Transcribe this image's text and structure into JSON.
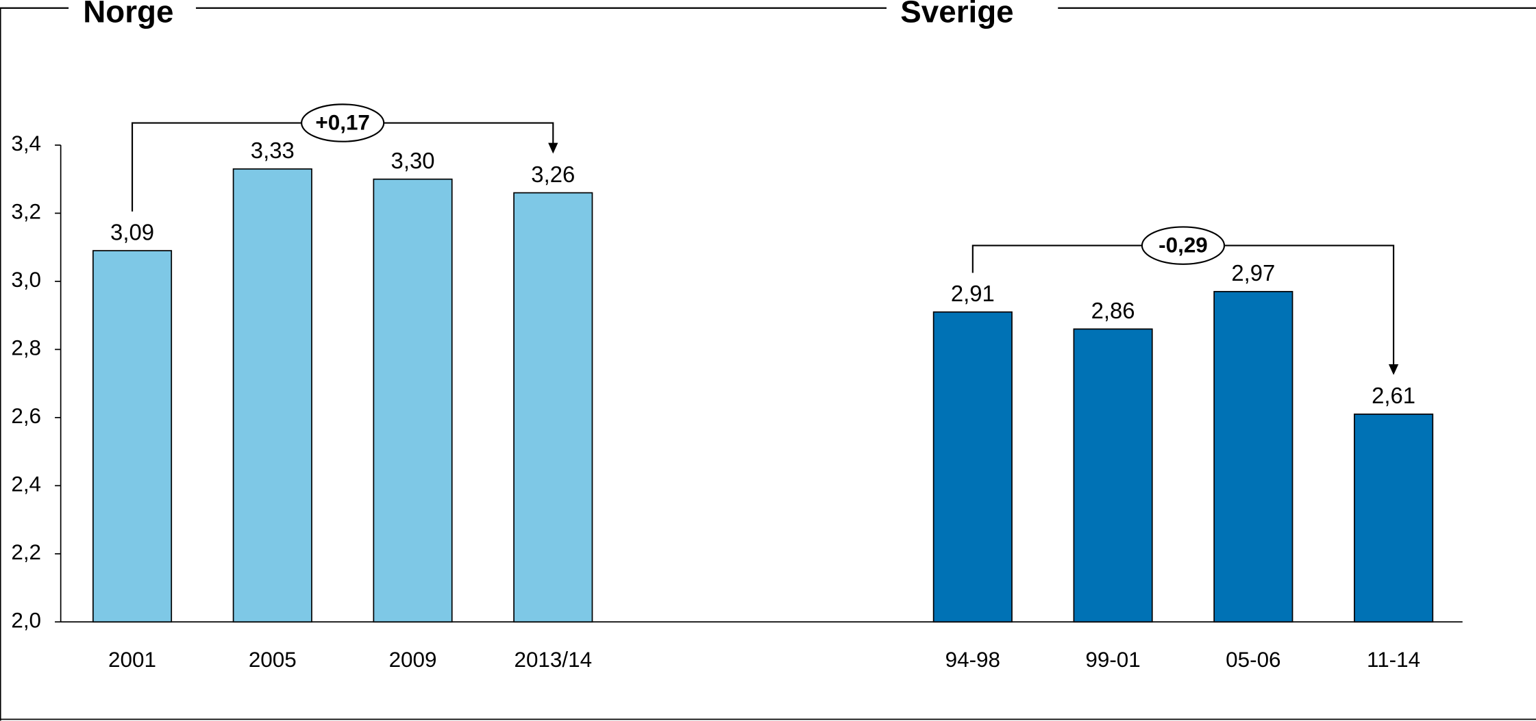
{
  "chart_data": {
    "type": "bar",
    "ylim": [
      2.0,
      3.4
    ],
    "yticks": [
      {
        "value": 2.0,
        "label": "2,0"
      },
      {
        "value": 2.2,
        "label": "2,2"
      },
      {
        "value": 2.4,
        "label": "2,4"
      },
      {
        "value": 2.6,
        "label": "2,6"
      },
      {
        "value": 2.8,
        "label": "2,8"
      },
      {
        "value": 3.0,
        "label": "3,0"
      },
      {
        "value": 3.2,
        "label": "3,2"
      },
      {
        "value": 3.4,
        "label": "3,4"
      }
    ],
    "groups": [
      {
        "title": "Norge",
        "color": "#7ec8e6",
        "categories": [
          "2001",
          "2005",
          "2009",
          "2013/14"
        ],
        "values": [
          3.09,
          3.33,
          3.3,
          3.26
        ],
        "value_labels": [
          "3,09",
          "3,33",
          "3,30",
          "3,26"
        ],
        "annotation": "+0,17"
      },
      {
        "title": "Sverige",
        "color": "#0072b5",
        "categories": [
          "94-98",
          "99-01",
          "05-06",
          "11-14"
        ],
        "values": [
          2.91,
          2.86,
          2.97,
          2.61
        ],
        "value_labels": [
          "2,91",
          "2,86",
          "2,97",
          "2,61"
        ],
        "annotation": "-0,29"
      }
    ]
  }
}
